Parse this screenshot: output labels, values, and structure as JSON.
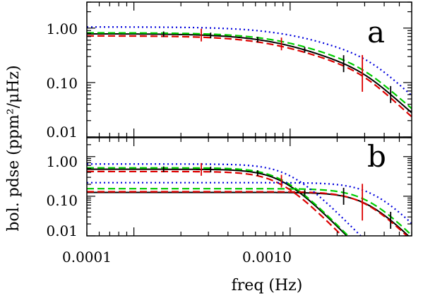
{
  "chart_data": [
    {
      "panel": "a",
      "type": "line",
      "xscale": "log",
      "yscale": "log",
      "xlim": [
        5e-05,
        0.006
      ],
      "ylim": [
        0.01,
        3.0
      ],
      "y_ticks": [
        1.0,
        0.1,
        0.01
      ],
      "y_tick_labels": [
        "1.00",
        "0.10",
        "0.01"
      ],
      "panel_label": "a",
      "series": [
        {
          "color": "#000000",
          "style": "solid",
          "components": [
            {
              "amp": 0.66,
              "fc": 0.00105,
              "n": 2
            },
            {
              "amp": 0.125,
              "fc": 0.0031,
              "n": 4
            }
          ]
        },
        {
          "color": "#00cc00",
          "style": "dashed",
          "components": [
            {
              "amp": 0.68,
              "fc": 0.00115,
              "n": 2
            },
            {
              "amp": 0.14,
              "fc": 0.0031,
              "n": 4
            }
          ]
        },
        {
          "color": "#dd0000",
          "style": "dashed",
          "components": [
            {
              "amp": 0.59,
              "fc": 0.001,
              "n": 2
            },
            {
              "amp": 0.13,
              "fc": 0.003,
              "n": 4
            }
          ]
        },
        {
          "color": "#0000dd",
          "style": "dotted",
          "components": [
            {
              "amp": 0.83,
              "fc": 0.0013,
              "n": 2
            },
            {
              "amp": 0.22,
              "fc": 0.0034,
              "n": 4
            }
          ]
        }
      ],
      "markers": [
        {
          "color": "#000000",
          "freqs": [
            0.000155,
            0.00031,
            0.00062,
            0.00124,
            0.0022,
            0.0044
          ]
        },
        {
          "color": "#dd0000",
          "freqs": [
            0.00027,
            0.00088,
            0.0029
          ]
        }
      ]
    },
    {
      "panel": "b",
      "type": "line",
      "xscale": "log",
      "yscale": "log",
      "xlim": [
        5e-05,
        0.006
      ],
      "ylim": [
        0.01,
        3.0
      ],
      "y_ticks": [
        1.0,
        0.1,
        0.01
      ],
      "y_tick_labels": [
        "1.00",
        "0.10",
        "0.01"
      ],
      "x_ticks": [
        0.0001,
        0.001
      ],
      "x_tick_labels": [
        "0.0001",
        "0.0010"
      ],
      "xlabel": "freq (Hz)",
      "ylabel": "bol. pdse (ppm²/μHz)",
      "panel_label": "b",
      "series": [
        {
          "color": "#000000",
          "style": "solid",
          "components": [
            {
              "amp": 0.48,
              "fc": 0.00088,
              "n": 4
            }
          ]
        },
        {
          "color": "#000000",
          "style": "solid",
          "components": [
            {
              "amp": 0.125,
              "fc": 0.0031,
              "n": 4
            }
          ]
        },
        {
          "color": "#00cc00",
          "style": "dashed",
          "components": [
            {
              "amp": 0.52,
              "fc": 0.00088,
              "n": 4
            }
          ]
        },
        {
          "color": "#00cc00",
          "style": "dashed",
          "components": [
            {
              "amp": 0.155,
              "fc": 0.0031,
              "n": 4
            }
          ]
        },
        {
          "color": "#dd0000",
          "style": "dashed",
          "components": [
            {
              "amp": 0.42,
              "fc": 0.00085,
              "n": 4
            }
          ]
        },
        {
          "color": "#dd0000",
          "style": "dashed",
          "components": [
            {
              "amp": 0.13,
              "fc": 0.003,
              "n": 4
            }
          ]
        },
        {
          "color": "#0000dd",
          "style": "dotted",
          "components": [
            {
              "amp": 0.65,
              "fc": 0.001,
              "n": 4
            }
          ]
        },
        {
          "color": "#0000dd",
          "style": "dotted",
          "components": [
            {
              "amp": 0.22,
              "fc": 0.0034,
              "n": 4
            }
          ]
        }
      ],
      "markers": [
        {
          "color": "#000000",
          "freqs": [
            0.000155,
            0.00031,
            0.00062,
            0.00124,
            0.0022,
            0.0044
          ]
        },
        {
          "color": "#dd0000",
          "freqs": [
            0.00027,
            0.00088,
            0.0029
          ]
        }
      ]
    }
  ]
}
